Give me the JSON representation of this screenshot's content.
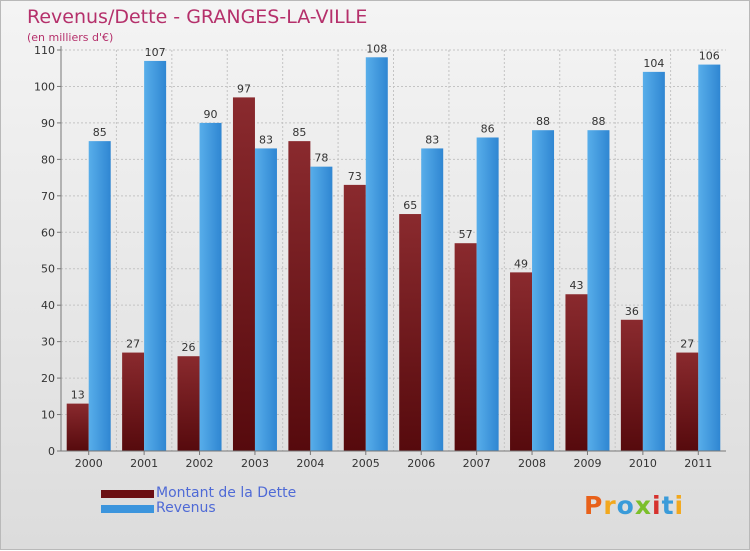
{
  "title": "Revenus/Dette - GRANGES-LA-VILLE",
  "subtitle": "(en milliers d'€)",
  "colors": {
    "dette": "#7a1a1e",
    "revenus": "#3b93de",
    "title": "#b5306b",
    "legend_text": "#4f6ad6"
  },
  "legend": [
    {
      "label": "Montant de la Dette",
      "color": "#6b0f12"
    },
    {
      "label": "Revenus",
      "color": "#3c95dd"
    }
  ],
  "logo": {
    "text": "Proxiti"
  },
  "chart_data": {
    "type": "bar",
    "title": "Revenus/Dette - GRANGES-LA-VILLE",
    "subtitle": "(en milliers d'€)",
    "categories": [
      "2000",
      "2001",
      "2002",
      "2003",
      "2004",
      "2005",
      "2006",
      "2007",
      "2008",
      "2009",
      "2010",
      "2011"
    ],
    "series": [
      {
        "name": "Montant de la Dette",
        "values": [
          13,
          27,
          26,
          97,
          85,
          73,
          65,
          57,
          49,
          43,
          36,
          27
        ]
      },
      {
        "name": "Revenus",
        "values": [
          85,
          107,
          90,
          83,
          78,
          108,
          83,
          86,
          88,
          88,
          104,
          106
        ]
      }
    ],
    "ylim": [
      0,
      110
    ],
    "yticks": [
      0,
      10,
      20,
      30,
      40,
      50,
      60,
      70,
      80,
      90,
      100,
      110
    ],
    "grid": true,
    "legend_position": "bottom-left"
  }
}
